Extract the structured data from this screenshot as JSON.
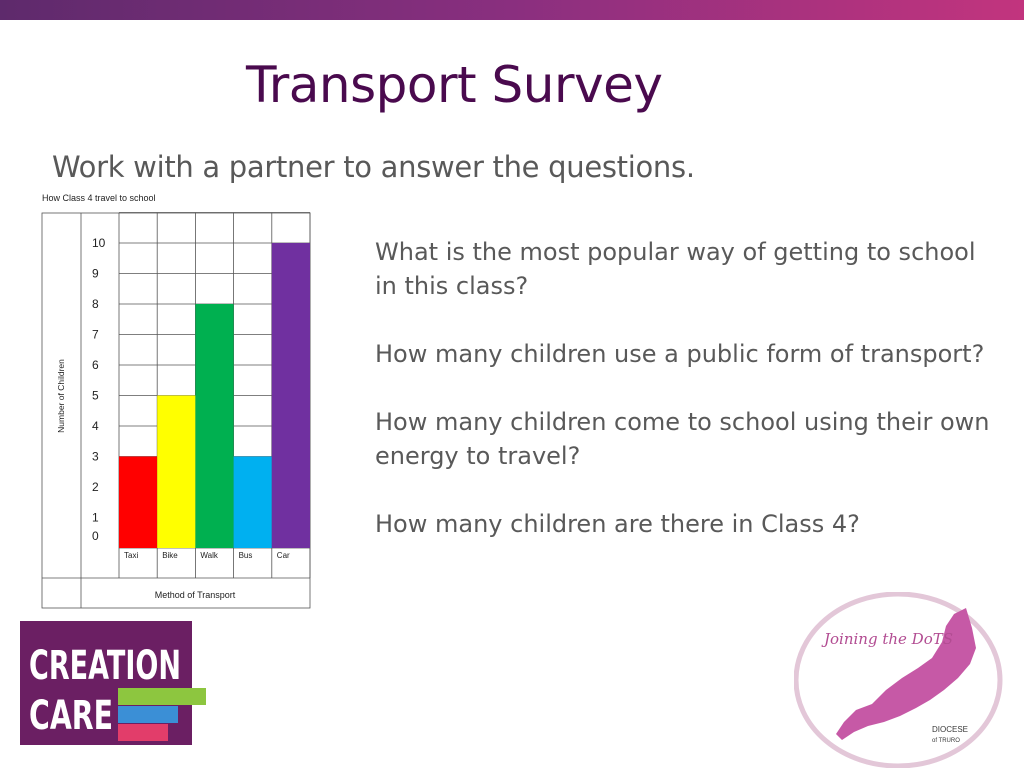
{
  "slide": {
    "title": "Transport Survey",
    "subtitle": "Work with a partner to answer the questions.",
    "questions": [
      "What is the most popular way of getting to school in this class?",
      "How many children use a public form of transport?",
      "How many children come to school using their own energy to travel?",
      "How many children are there in Class 4?"
    ]
  },
  "chart_data": {
    "type": "bar",
    "title": "How Class 4 travel to school",
    "xlabel": "Method of Transport",
    "ylabel": "Number of Children",
    "categories": [
      "Taxi",
      "Bike",
      "Walk",
      "Bus",
      "Car"
    ],
    "values": [
      3,
      5,
      8,
      3,
      10
    ],
    "colors": [
      "#ff0000",
      "#ffff00",
      "#00b050",
      "#00b0f0",
      "#7030a0"
    ],
    "yticks": [
      0,
      1,
      2,
      3,
      4,
      5,
      6,
      7,
      8,
      9,
      10
    ],
    "ylim": [
      0,
      11
    ],
    "grid": true
  },
  "logos": {
    "creation_care": {
      "line1": "CREATION",
      "line2": "CARE",
      "bg": "#6b1f63",
      "stripes": [
        "#8dc63f",
        "#3b8fd6",
        "#e23d6a"
      ]
    },
    "joining": {
      "title": "Joining the DoTS",
      "org_line1": "DIOCESE",
      "org_line2": "of TRURO",
      "map_color": "#c659a6"
    }
  }
}
